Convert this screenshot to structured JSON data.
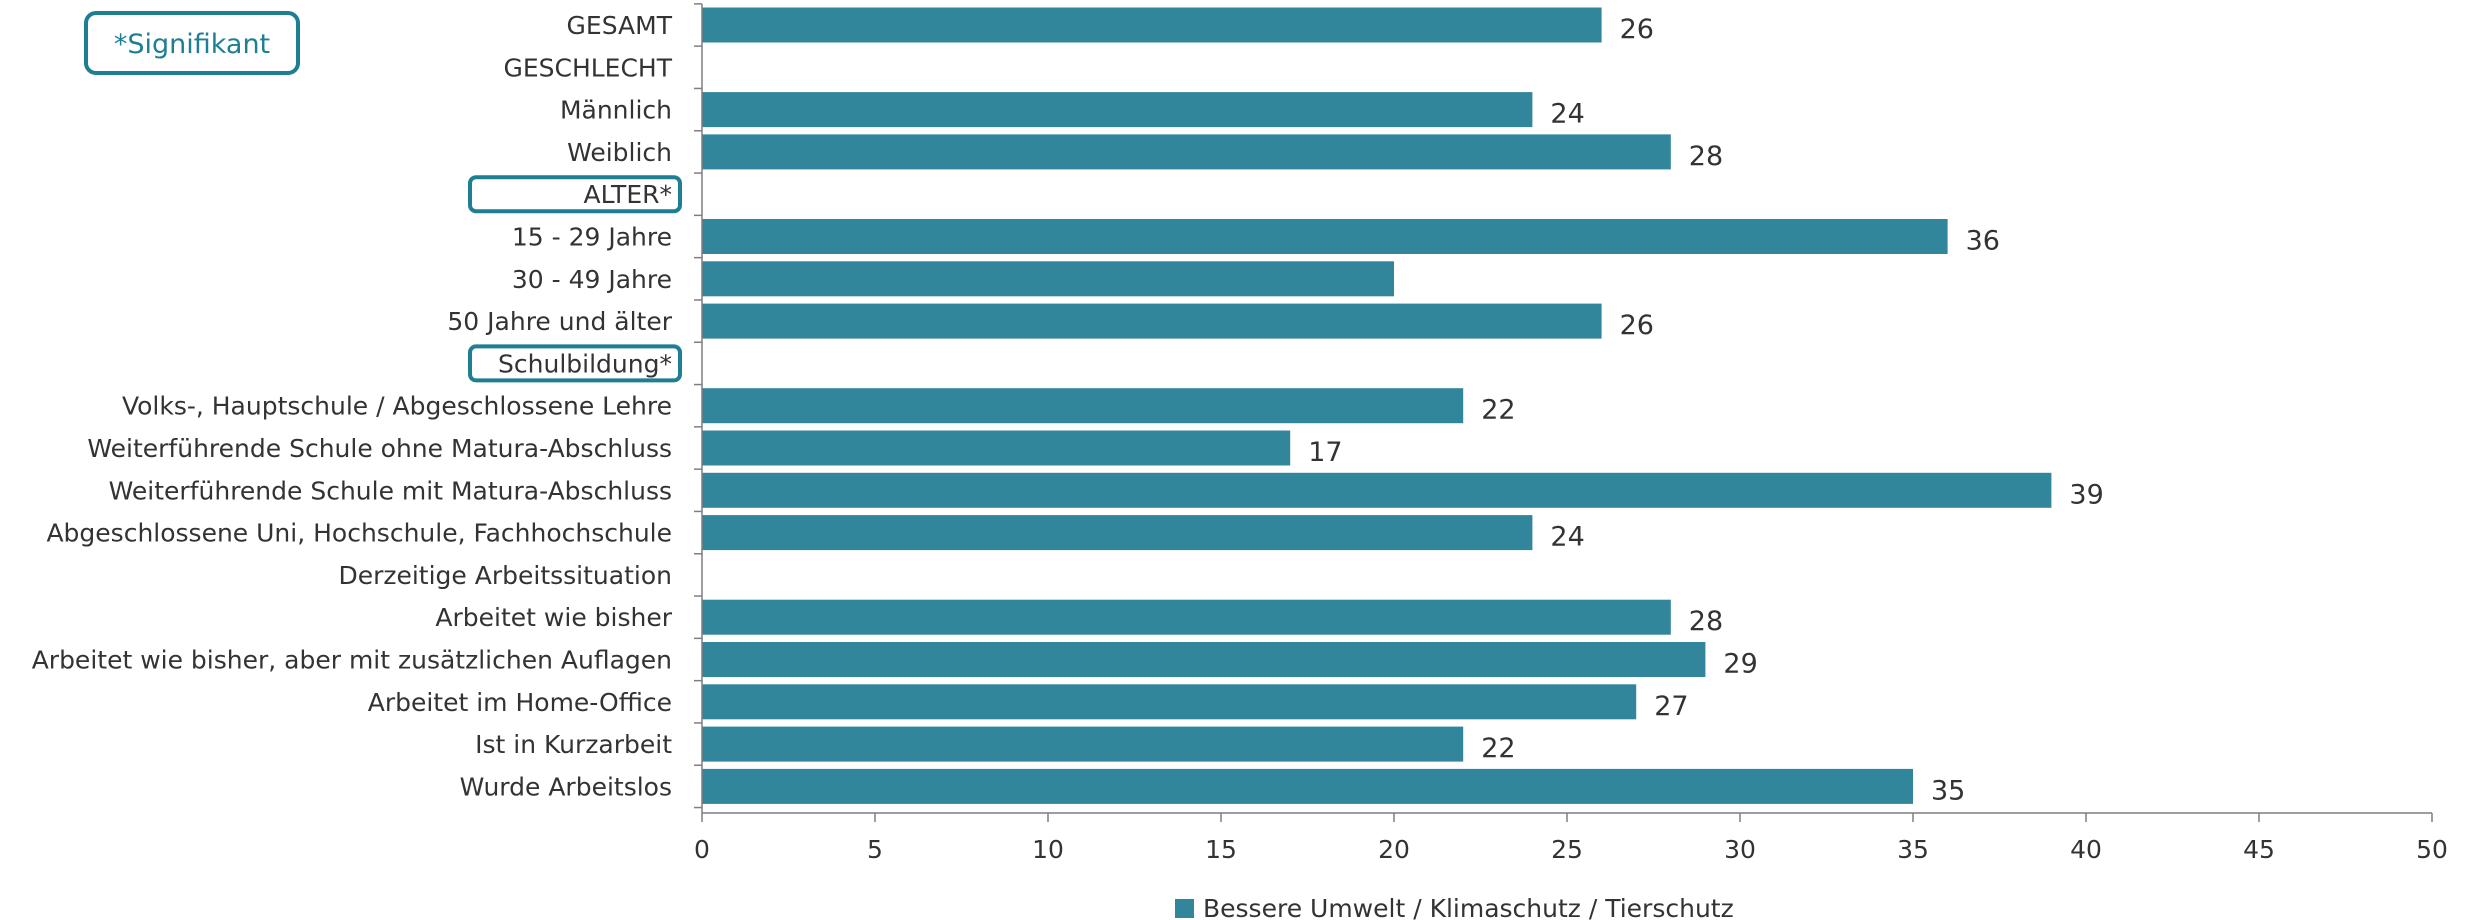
{
  "note": {
    "text": "*Signifikant"
  },
  "colors": {
    "bar": "#31869b",
    "highlight": "#1e7f93",
    "axis": "#7f7f7f",
    "text": "#333333"
  },
  "chart_data": {
    "type": "bar",
    "orientation": "horizontal",
    "categories": [
      "GESAMT",
      "GESCHLECHT",
      "Männlich",
      "Weiblich",
      "ALTER*",
      "15 - 29 Jahre",
      "30 - 49 Jahre",
      "50 Jahre und älter",
      "Schulbildung*",
      "Volks-, Hauptschule / Abgeschlossene Lehre",
      "Weiterführende Schule ohne Matura-Abschluss",
      "Weiterführende Schule mit Matura-Abschluss",
      "Abgeschlossene Uni, Hochschule, Fachhochschule",
      "Derzeitige Arbeitssituation",
      "Arbeitet wie bisher",
      "Arbeitet wie bisher, aber mit zusätzlichen Auflagen",
      "Arbeitet im Home-Office",
      "Ist in Kurzarbeit",
      "Wurde Arbeitslos"
    ],
    "highlighted_categories": [
      "ALTER*",
      "Schulbildung*"
    ],
    "series": [
      {
        "name": "Bessere Umwelt / Klimaschutz / Tierschutz",
        "values": [
          26,
          null,
          24,
          28,
          null,
          36,
          20,
          26,
          null,
          22,
          17,
          39,
          24,
          null,
          28,
          29,
          27,
          22,
          35
        ],
        "labels": [
          "26",
          "",
          "24",
          "28",
          "",
          "36",
          "",
          "26",
          "",
          "22",
          "17",
          "39",
          "24",
          "",
          "28",
          "29",
          "27",
          "22",
          "35"
        ]
      }
    ],
    "xlim": [
      0,
      50
    ],
    "xticks": [
      0,
      5,
      10,
      15,
      20,
      25,
      30,
      35,
      40,
      45,
      50
    ],
    "legend_position": "bottom-center",
    "grid": false
  }
}
